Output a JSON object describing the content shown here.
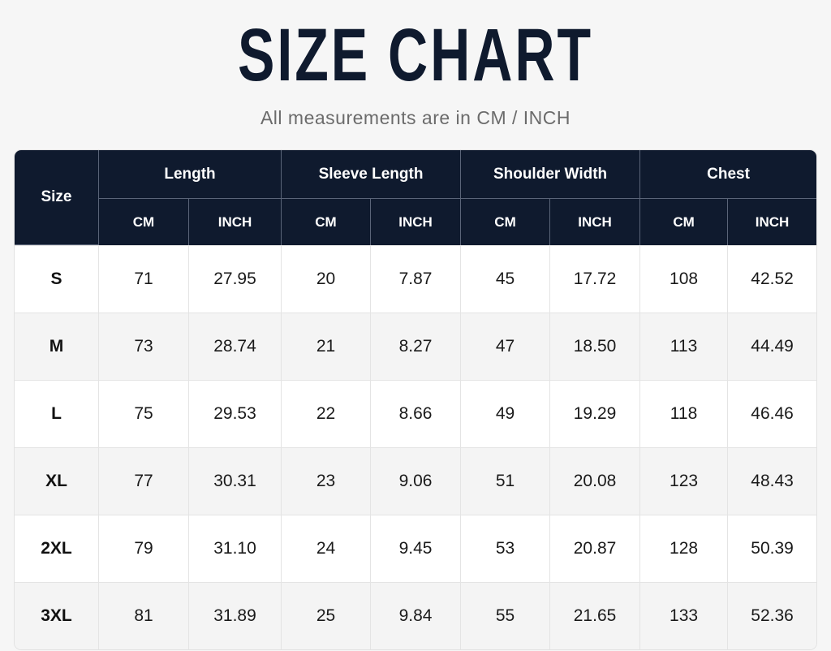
{
  "header": {
    "title": "SIZE CHART",
    "subtitle": "All measurements are in CM / INCH"
  },
  "table": {
    "size_label": "Size",
    "columns": [
      {
        "name": "Length",
        "units": [
          "CM",
          "INCH"
        ]
      },
      {
        "name": "Sleeve Length",
        "units": [
          "CM",
          "INCH"
        ]
      },
      {
        "name": "Shoulder Width",
        "units": [
          "CM",
          "INCH"
        ]
      },
      {
        "name": "Chest",
        "units": [
          "CM",
          "INCH"
        ]
      }
    ],
    "rows": [
      [
        "S",
        "71",
        "27.95",
        "20",
        "7.87",
        "45",
        "17.72",
        "108",
        "42.52"
      ],
      [
        "M",
        "73",
        "28.74",
        "21",
        "8.27",
        "47",
        "18.50",
        "113",
        "44.49"
      ],
      [
        "L",
        "75",
        "29.53",
        "22",
        "8.66",
        "49",
        "19.29",
        "118",
        "46.46"
      ],
      [
        "XL",
        "77",
        "30.31",
        "23",
        "9.06",
        "51",
        "20.08",
        "123",
        "48.43"
      ],
      [
        "2XL",
        "79",
        "31.10",
        "24",
        "9.45",
        "53",
        "20.87",
        "128",
        "50.39"
      ],
      [
        "3XL",
        "81",
        "31.89",
        "25",
        "9.84",
        "55",
        "21.65",
        "133",
        "52.36"
      ]
    ]
  }
}
